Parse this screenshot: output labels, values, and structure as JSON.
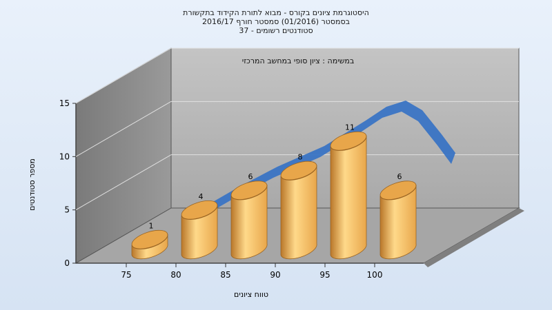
{
  "chart_data": {
    "type": "bar",
    "title_lines": [
      "היסטוגרמת ציונים בקורס - מבוא לתורת הקידוד בתקשורת",
      "בסמסטר  (01/2016)  סמסטר חורף  2016/17",
      "סטודנטים רשומים - 37"
    ],
    "annotation": "במשימה : ציון סופי במחשב המרכזי",
    "xlabel": "טווח ציונים",
    "ylabel": "מספר סטודנטים",
    "x_ticks": [
      "75",
      "80",
      "85",
      "90",
      "95",
      "100"
    ],
    "y_ticks": [
      0,
      5,
      10,
      15
    ],
    "ylim": [
      0,
      15
    ],
    "categories": [
      "75-80",
      "80-85",
      "85-90",
      "90-95",
      "95-100",
      "100"
    ],
    "values": [
      1,
      4,
      6,
      8,
      11,
      6
    ],
    "value_labels": [
      "1",
      "4",
      "6",
      "8",
      "11",
      "6"
    ],
    "trend": {
      "style": "smooth ribbon"
    },
    "colors": {
      "bar_light": "#ffd98a",
      "bar_mid": "#e8a64a",
      "bar_dark": "#b9772a",
      "ribbon": "#3a74c4",
      "back_wall": "#b3b3b3",
      "side_wall": "#8a8a8a",
      "floor": "#a6a6a6"
    },
    "grid": true
  }
}
